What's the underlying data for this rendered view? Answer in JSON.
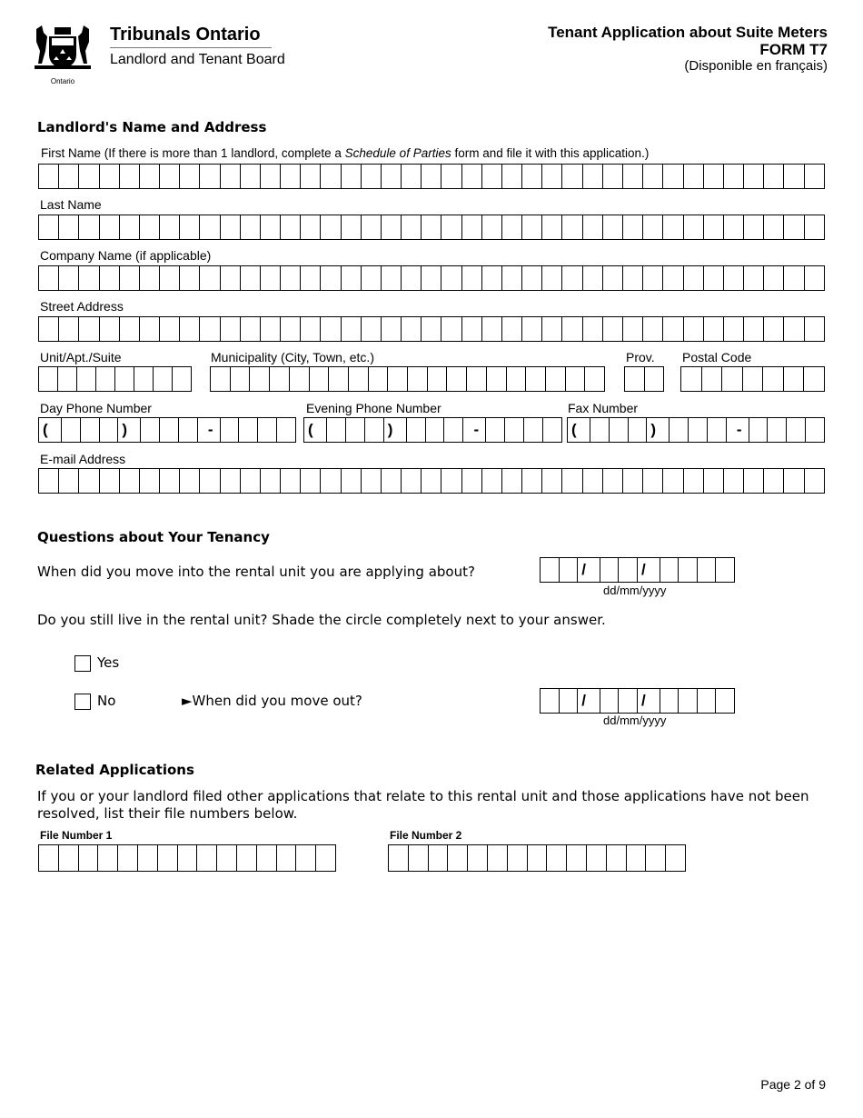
{
  "header": {
    "org": "Tribunals Ontario",
    "board": "Landlord and Tenant Board",
    "logo_text": "Ontario",
    "form_title": "Tenant Application about Suite Meters",
    "form_code": "FORM T7",
    "french": "(Disponible en français)"
  },
  "landlord": {
    "heading": "Landlord's Name and Address",
    "first_name_label": "First Name  (If there is more than 1 landlord, complete a ",
    "first_name_italic": "Schedule of Parties",
    "first_name_label_end": " form and file it with this application.)",
    "last_name_label": "Last Name",
    "company_label": "Company Name (if applicable)",
    "street_label": "Street Address",
    "unit_label": "Unit/Apt./Suite",
    "municipality_label": "Municipality (City, Town, etc.)",
    "prov_label": "Prov.",
    "postal_label": "Postal Code",
    "day_phone_label": "Day Phone Number",
    "evening_phone_label": "Evening Phone Number",
    "fax_label": "Fax Number",
    "email_label": "E-mail Address",
    "phone_pattern": [
      "(",
      "",
      "",
      "",
      ")",
      "",
      "",
      "",
      "-",
      "",
      "",
      "",
      ""
    ]
  },
  "tenancy": {
    "heading": "Questions about Your Tenancy",
    "move_in_question": "When did you move into the rental unit you are applying about?",
    "date_pattern": [
      "",
      "",
      "/",
      "",
      "",
      "/",
      "",
      "",
      "",
      ""
    ],
    "date_format": "dd/mm/yyyy",
    "still_live_question": "Do you still live in the rental unit? Shade the circle completely next to your answer.",
    "yes_label": "Yes",
    "no_label": "No",
    "move_out_question": "►When did you move out?"
  },
  "related": {
    "heading": "Related Applications",
    "text": "If you or your landlord filed other applications that relate to this rental unit and those applications have not been resolved, list their file numbers below.",
    "file1_label": "File Number 1",
    "file2_label": "File Number 2"
  },
  "footer": {
    "page": "Page 2 of 9"
  }
}
